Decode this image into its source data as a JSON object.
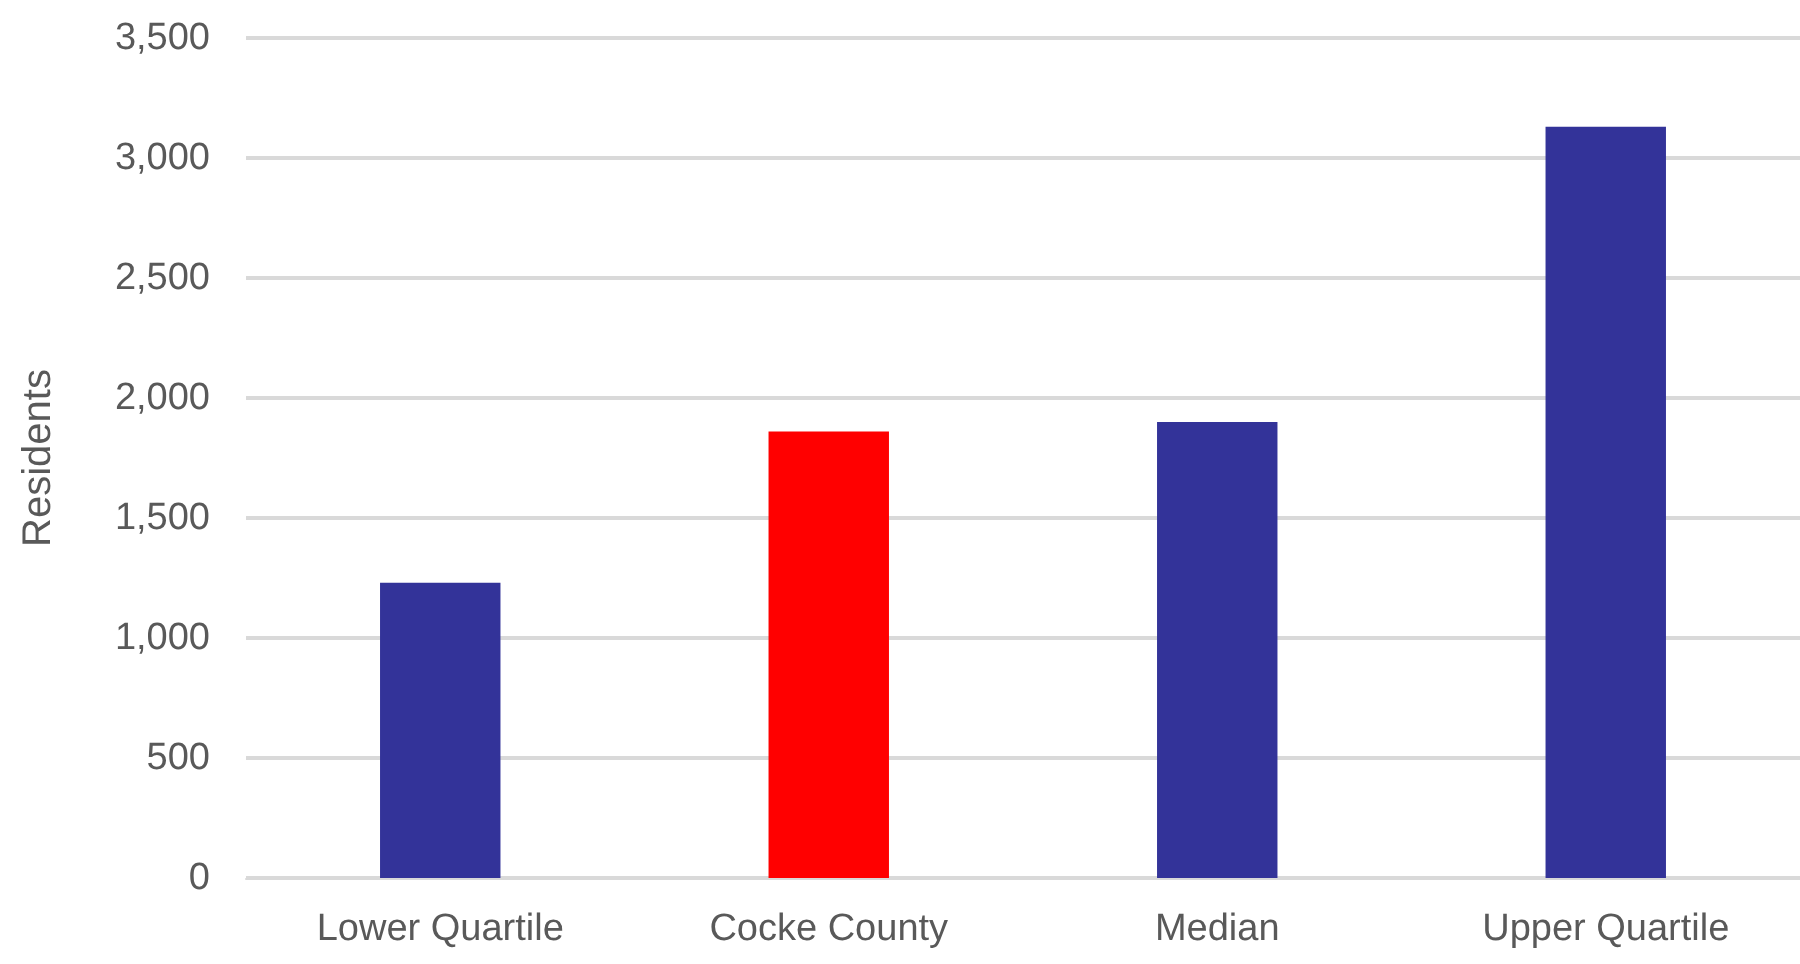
{
  "chart_data": {
    "type": "bar",
    "ylabel": "Residents",
    "categories": [
      "Lower Quartile",
      "Cocke County",
      "Median",
      "Upper Quartile"
    ],
    "values": [
      1230,
      1860,
      1900,
      3130
    ],
    "colors": [
      "#333399",
      "#ff0000",
      "#333399",
      "#333399"
    ],
    "ylim": [
      0,
      3500
    ],
    "yticks": [
      {
        "value": 0,
        "label": "0"
      },
      {
        "value": 500,
        "label": "500"
      },
      {
        "value": 1000,
        "label": "1,000"
      },
      {
        "value": 1500,
        "label": "1,500"
      },
      {
        "value": 2000,
        "label": "2,000"
      },
      {
        "value": 2500,
        "label": "2,500"
      },
      {
        "value": 3000,
        "label": "3,000"
      },
      {
        "value": 3500,
        "label": "3,500"
      }
    ],
    "grid": "y"
  }
}
